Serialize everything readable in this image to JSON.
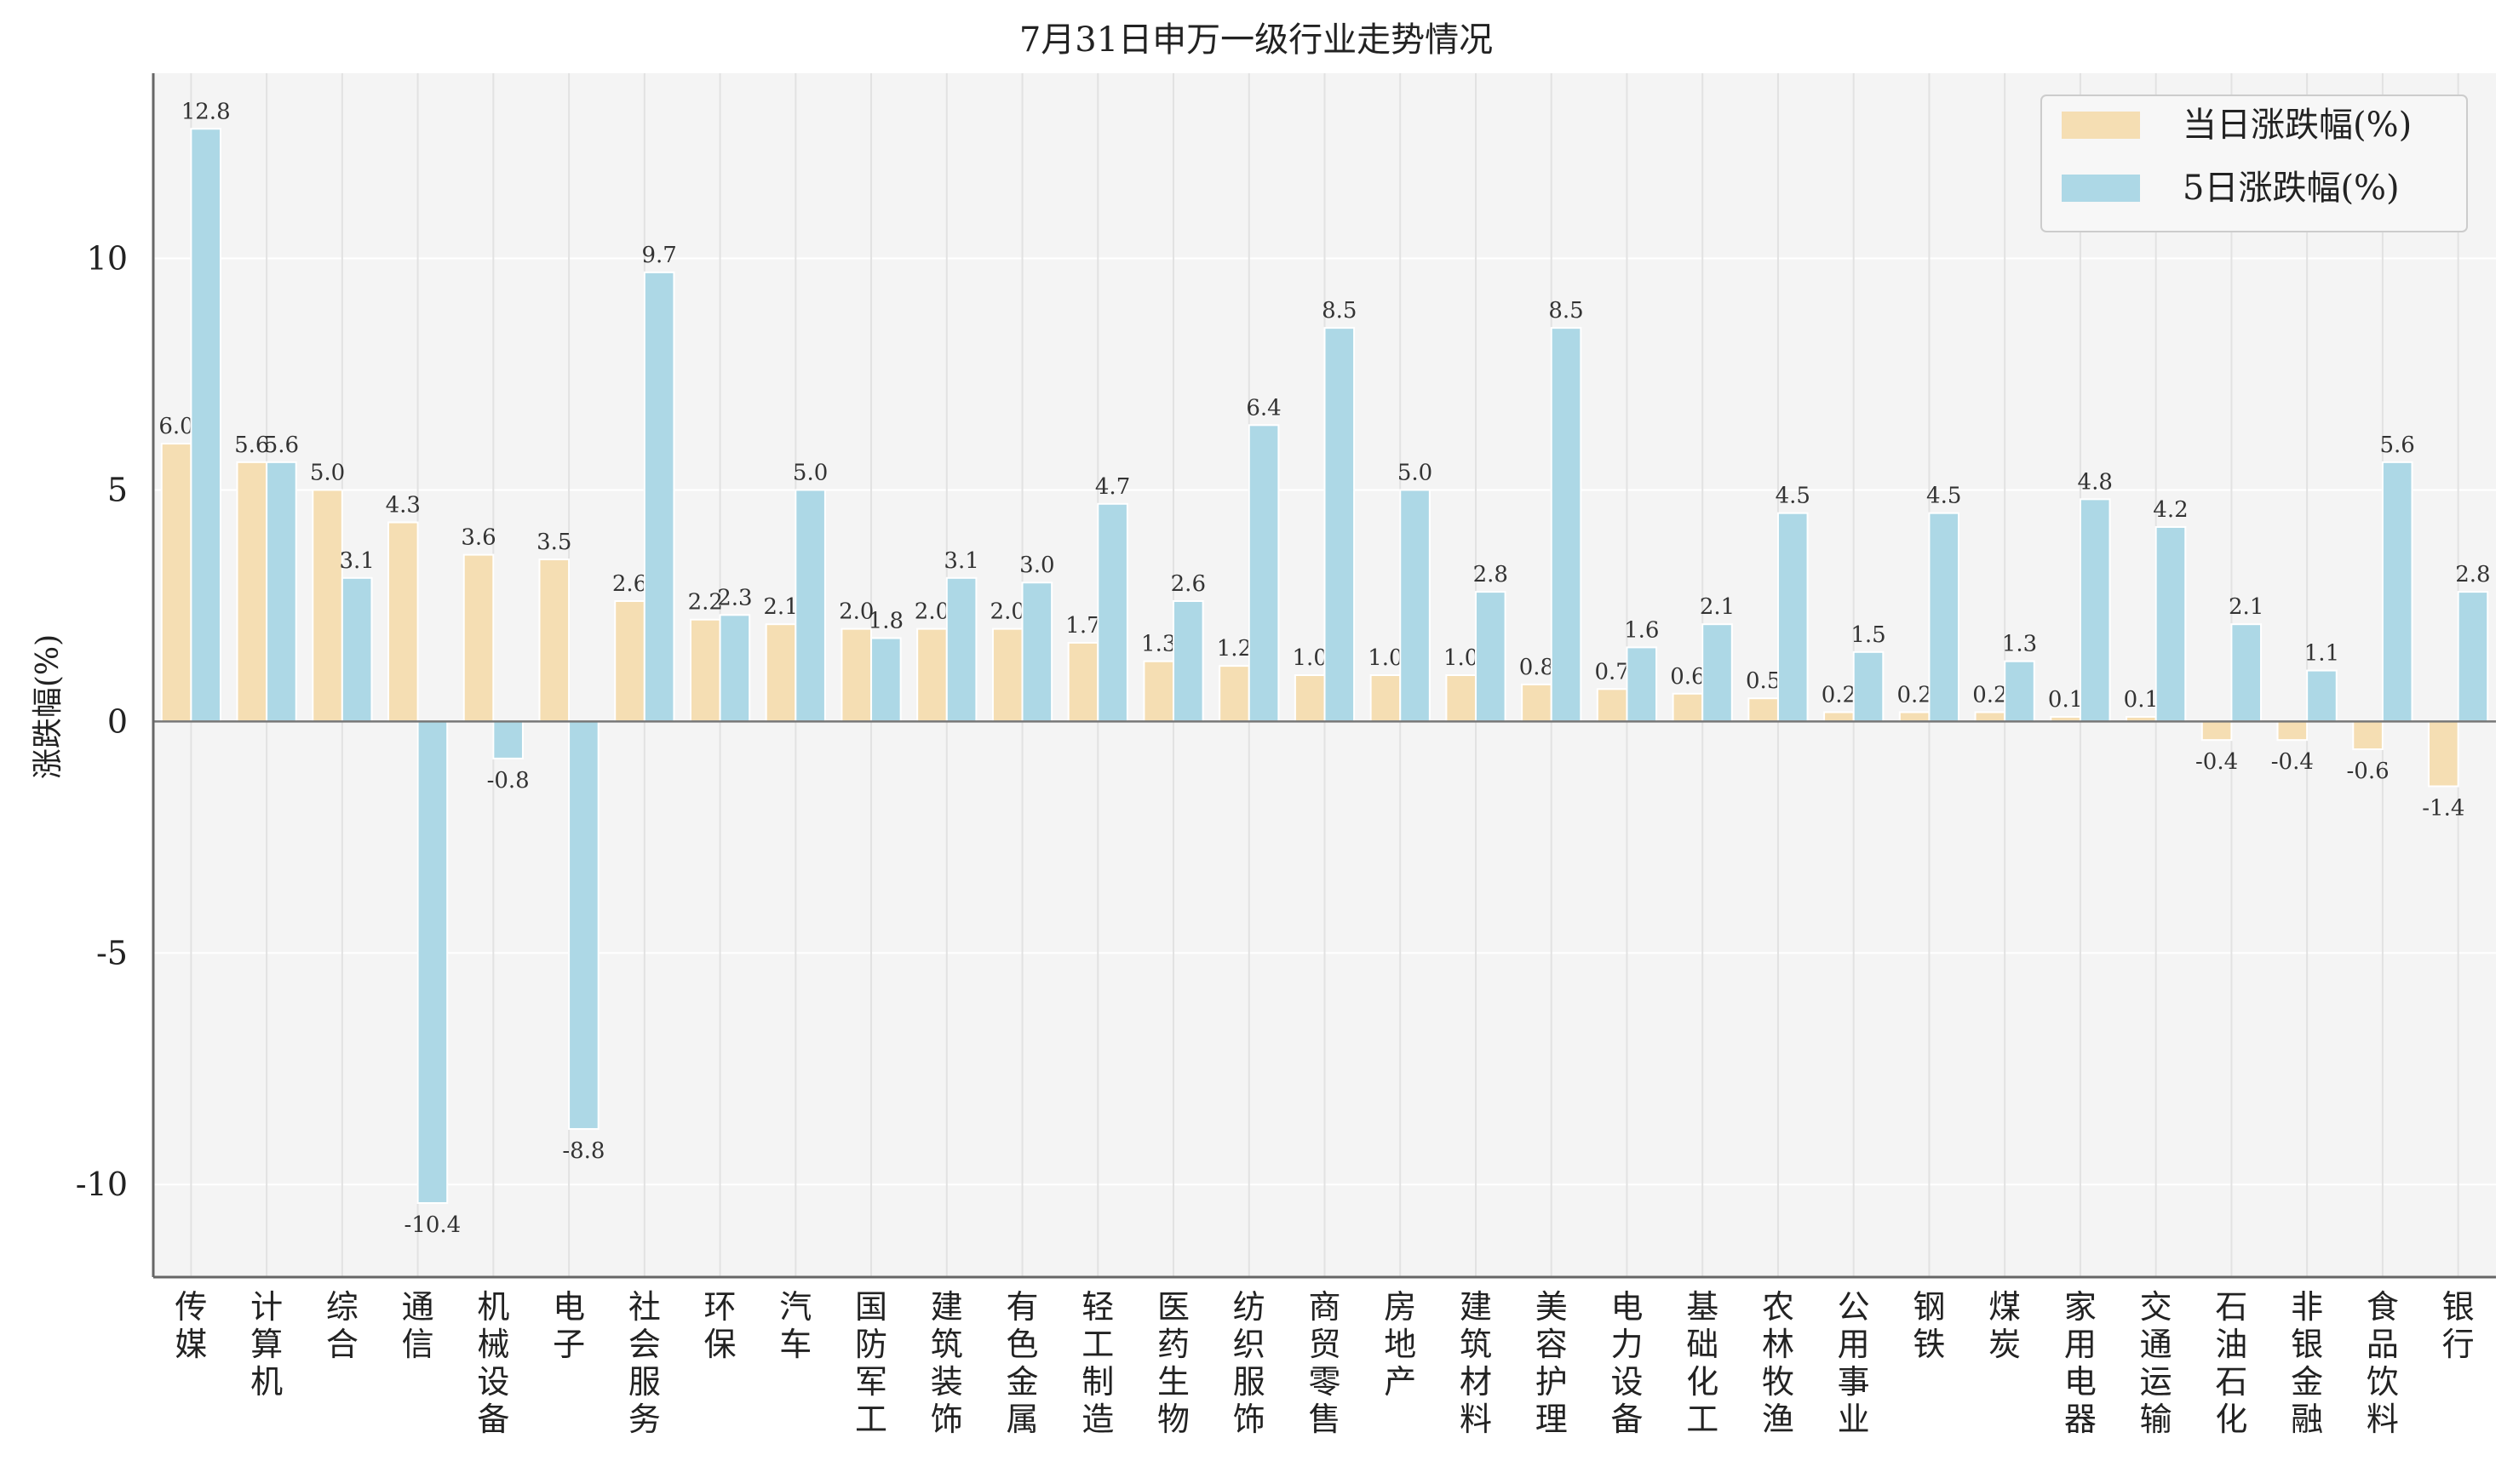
{
  "chart_data": {
    "type": "bar",
    "title": "7月31日申万一级行业走势情况",
    "xlabel": "",
    "ylabel": "涨跌幅(%)",
    "ylim": [
      -12,
      14
    ],
    "yticks": [
      -10,
      -5,
      0,
      5,
      10
    ],
    "grid": true,
    "legend_position": "top-right",
    "colors": {
      "daily": "#f5deb3",
      "five_day": "#add8e6",
      "plot_bg": "#f4f4f4"
    },
    "categories": [
      "传媒",
      "计算机",
      "综合",
      "通信",
      "机械设备",
      "电子",
      "社会服务",
      "环保",
      "汽车",
      "国防军工",
      "建筑装饰",
      "有色金属",
      "轻工制造",
      "医药生物",
      "纺织服饰",
      "商贸零售",
      "房地产",
      "建筑材料",
      "美容护理",
      "电力设备",
      "基础化工",
      "农林牧渔",
      "公用事业",
      "钢铁",
      "煤炭",
      "家用电器",
      "交通运输",
      "石油石化",
      "非银金融",
      "食品饮料",
      "银行"
    ],
    "series": [
      {
        "name": "当日涨跌幅(%)",
        "values": [
          6.0,
          5.6,
          5.0,
          4.3,
          3.6,
          3.5,
          2.6,
          2.2,
          2.1,
          2.0,
          2.0,
          2.0,
          1.7,
          1.3,
          1.2,
          1.0,
          1.0,
          1.0,
          0.8,
          0.7,
          0.6,
          0.5,
          0.2,
          0.2,
          0.2,
          0.1,
          0.1,
          -0.4,
          -0.4,
          -0.6,
          -1.4
        ],
        "labels": [
          "6.0",
          "5.6",
          "5.0",
          "4.3",
          "3.6",
          "3.5",
          "2.6",
          "2.2",
          "2.1",
          "2.0",
          "2.0",
          "2.0",
          "1.7",
          "1.3",
          "1.2",
          "1.0",
          "1.0",
          "1.0",
          "0.8",
          "0.7",
          "0.6",
          "0.5",
          "0.2",
          "0.2",
          "0.2",
          "0.1",
          "0.1",
          "-0.4",
          "-0.4",
          "-0.6",
          "-1.4"
        ]
      },
      {
        "name": "5日涨跌幅(%)",
        "values": [
          12.8,
          5.6,
          3.1,
          -10.4,
          -0.8,
          -8.8,
          9.7,
          2.3,
          5.0,
          1.8,
          3.1,
          3.0,
          4.7,
          2.6,
          6.4,
          8.5,
          5.0,
          2.8,
          8.5,
          1.6,
          2.1,
          4.5,
          1.5,
          4.5,
          1.3,
          4.8,
          4.2,
          2.1,
          1.1,
          5.6,
          2.8
        ],
        "labels": [
          "12.8",
          "5.6",
          "3.1",
          "-10.4",
          "-0.8",
          "-8.8",
          "9.7",
          "2.3",
          "5.0",
          "1.8",
          "3.1",
          "3.0",
          "4.7",
          "2.6",
          "6.4",
          "8.5",
          "5.0",
          "2.8",
          "8.5",
          "1.6",
          "2.1",
          "4.5",
          "1.5",
          "4.5",
          "1.3",
          "4.8",
          "4.2",
          "2.1",
          "1.1",
          "5.6",
          "2.8"
        ]
      }
    ]
  }
}
